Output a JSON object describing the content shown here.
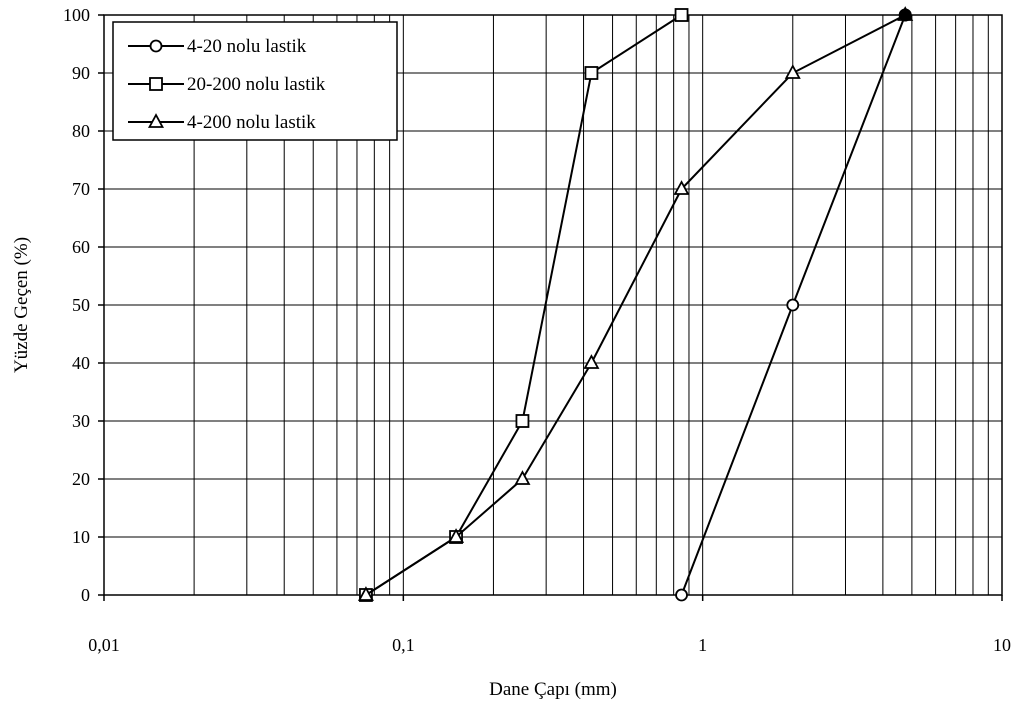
{
  "chart_data": {
    "type": "line",
    "xscale": "log",
    "xlim": [
      0.01,
      10
    ],
    "ylim": [
      0,
      100
    ],
    "grid": true,
    "legend_position": "top-left",
    "xlabel": "Dane Çapı (mm)",
    "ylabel": "Yüzde Geçen (%)",
    "x_ticks": [
      0.01,
      0.1,
      1,
      10
    ],
    "x_tick_labels": [
      "0,01",
      "0,1",
      "1",
      "10"
    ],
    "y_ticks": [
      0,
      10,
      20,
      30,
      40,
      50,
      60,
      70,
      80,
      90,
      100
    ],
    "y_tick_labels": [
      "0",
      "10",
      "20",
      "30",
      "40",
      "50",
      "60",
      "70",
      "80",
      "90",
      "100"
    ],
    "series": [
      {
        "name": "4-20 nolu lastik",
        "marker": "circle",
        "x": [
          0.85,
          2,
          4.75
        ],
        "y": [
          0,
          50,
          100
        ]
      },
      {
        "name": "20-200 nolu lastik",
        "marker": "square",
        "x": [
          0.075,
          0.15,
          0.25,
          0.425,
          0.85
        ],
        "y": [
          0,
          10,
          30,
          90,
          100
        ]
      },
      {
        "name": "4-200 nolu lastik",
        "marker": "triangle",
        "x": [
          0.075,
          0.15,
          0.25,
          0.425,
          0.85,
          2,
          4.75
        ],
        "y": [
          0,
          10,
          20,
          40,
          70,
          90,
          100
        ]
      }
    ]
  }
}
